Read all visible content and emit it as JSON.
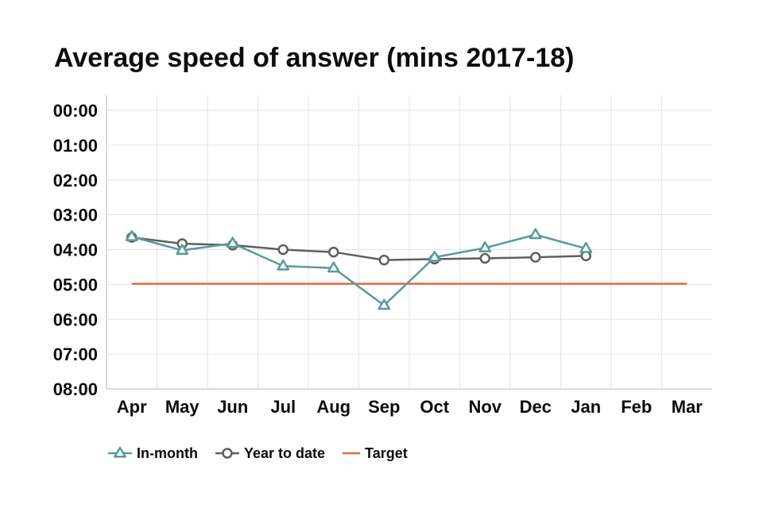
{
  "chart_data": {
    "type": "line",
    "title": "Average speed of answer (mins 2017-18)",
    "xlabel": "",
    "ylabel": "",
    "categories": [
      "Apr",
      "May",
      "Jun",
      "Jul",
      "Aug",
      "Sep",
      "Oct",
      "Nov",
      "Dec",
      "Jan",
      "Feb",
      "Mar"
    ],
    "y_ticks": [
      "00:00",
      "01:00",
      "02:00",
      "03:00",
      "04:00",
      "05:00",
      "06:00",
      "07:00",
      "08:00"
    ],
    "ylim": [
      0,
      8
    ],
    "y_inverted": true,
    "grid": true,
    "legend_position": "bottom-left",
    "series": [
      {
        "name": "In-month",
        "marker": "triangle",
        "color": "#5b9a9a",
        "values": [
          3.63,
          4.02,
          3.82,
          4.47,
          4.53,
          5.6,
          4.22,
          3.95,
          3.57,
          3.97,
          null,
          null
        ]
      },
      {
        "name": "Year to date",
        "marker": "circle",
        "color": "#5f5f5f",
        "values": [
          3.65,
          3.83,
          3.87,
          4.0,
          4.07,
          4.3,
          4.27,
          4.25,
          4.22,
          4.18,
          null,
          null
        ]
      },
      {
        "name": "Target",
        "marker": "none",
        "color": "#e06b3f",
        "values": [
          4.98,
          4.98,
          4.98,
          4.98,
          4.98,
          4.98,
          4.98,
          4.98,
          4.98,
          4.98,
          4.98,
          4.98
        ]
      }
    ]
  }
}
